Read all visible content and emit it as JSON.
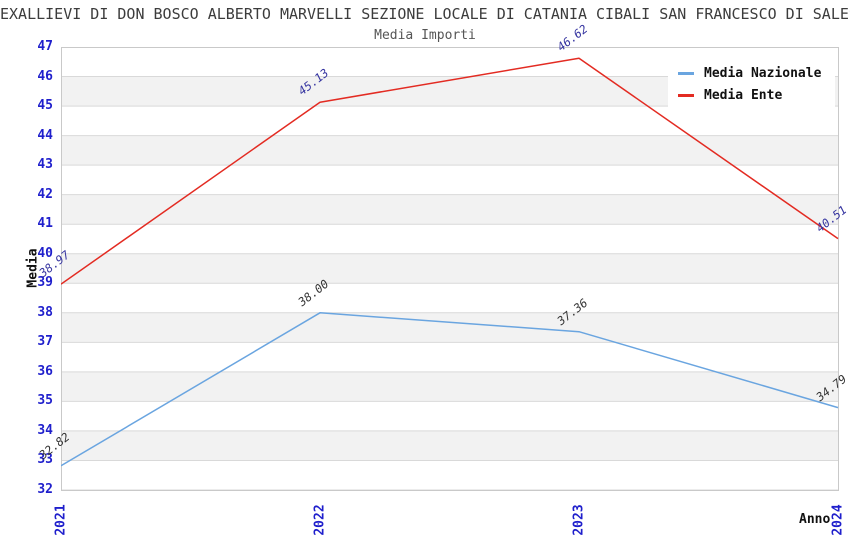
{
  "chart_data": {
    "type": "line",
    "title": "EXALLIEVI DI DON BOSCO ALBERTO MARVELLI SEZIONE LOCALE DI CATANIA CIBALI SAN FRANCESCO DI SALES",
    "subtitle": "Media Importi",
    "xlabel": "Anno",
    "ylabel": "Media",
    "categories": [
      "2021",
      "2022",
      "2023",
      "2024"
    ],
    "series": [
      {
        "name": "Media Nazionale",
        "values": [
          32.82,
          38.0,
          37.36,
          34.79
        ],
        "color": "#6aa5e0",
        "label_color": "#333333"
      },
      {
        "name": "Media Ente",
        "values": [
          38.97,
          45.13,
          46.62,
          40.51
        ],
        "color": "#e32b22",
        "label_color": "#3534a0"
      }
    ],
    "ylim": [
      32,
      47
    ],
    "ytick_step": 1,
    "grid": "horizontal gridlines with alternating gray/white bands",
    "legend_position": "top-right",
    "colors": {
      "tick_label": "#1f1fcc",
      "band_gray": "#f2f2f2",
      "band_white": "#ffffff",
      "gridline": "#d9d9d9",
      "plot_border": "#c9c9c9"
    }
  }
}
